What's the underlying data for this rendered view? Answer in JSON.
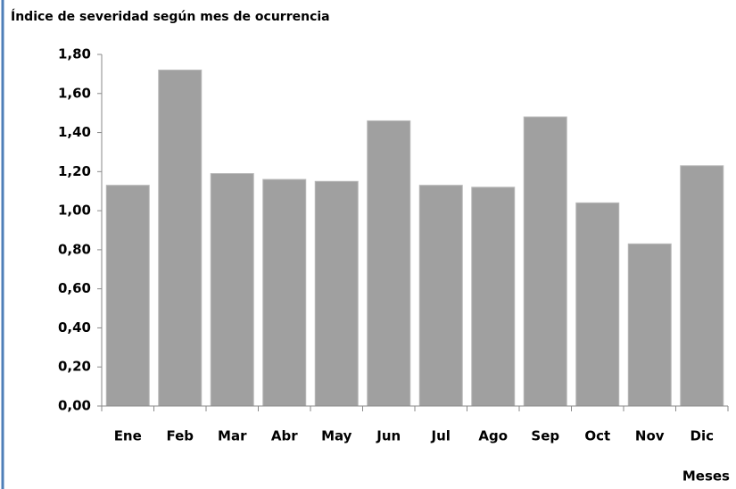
{
  "chart_data": {
    "type": "bar",
    "title": "Índice de severidad según mes de ocurrencia",
    "xlabel": "Meses",
    "categories": [
      "Ene",
      "Feb",
      "Mar",
      "Abr",
      "May",
      "Jun",
      "Jul",
      "Ago",
      "Sep",
      "Oct",
      "Nov",
      "Dic"
    ],
    "values": [
      1.13,
      1.72,
      1.19,
      1.16,
      1.15,
      1.46,
      1.13,
      1.12,
      1.48,
      1.04,
      0.83,
      1.23
    ],
    "color": "#a0a0a0",
    "ylim": [
      0,
      1.8
    ],
    "yticks": [
      {
        "value": 0,
        "label": "0,00"
      },
      {
        "value": 0.2,
        "label": "0,20"
      },
      {
        "value": 0.4,
        "label": "0,40"
      },
      {
        "value": 0.6,
        "label": "0,60"
      },
      {
        "value": 0.8,
        "label": "0,80"
      },
      {
        "value": 1,
        "label": "1,00"
      },
      {
        "value": 1.2,
        "label": "1,20"
      },
      {
        "value": 1.4,
        "label": "1,40"
      },
      {
        "value": 1.6,
        "label": "1,60"
      },
      {
        "value": 1.8,
        "label": "1,80"
      }
    ],
    "grid": false
  }
}
